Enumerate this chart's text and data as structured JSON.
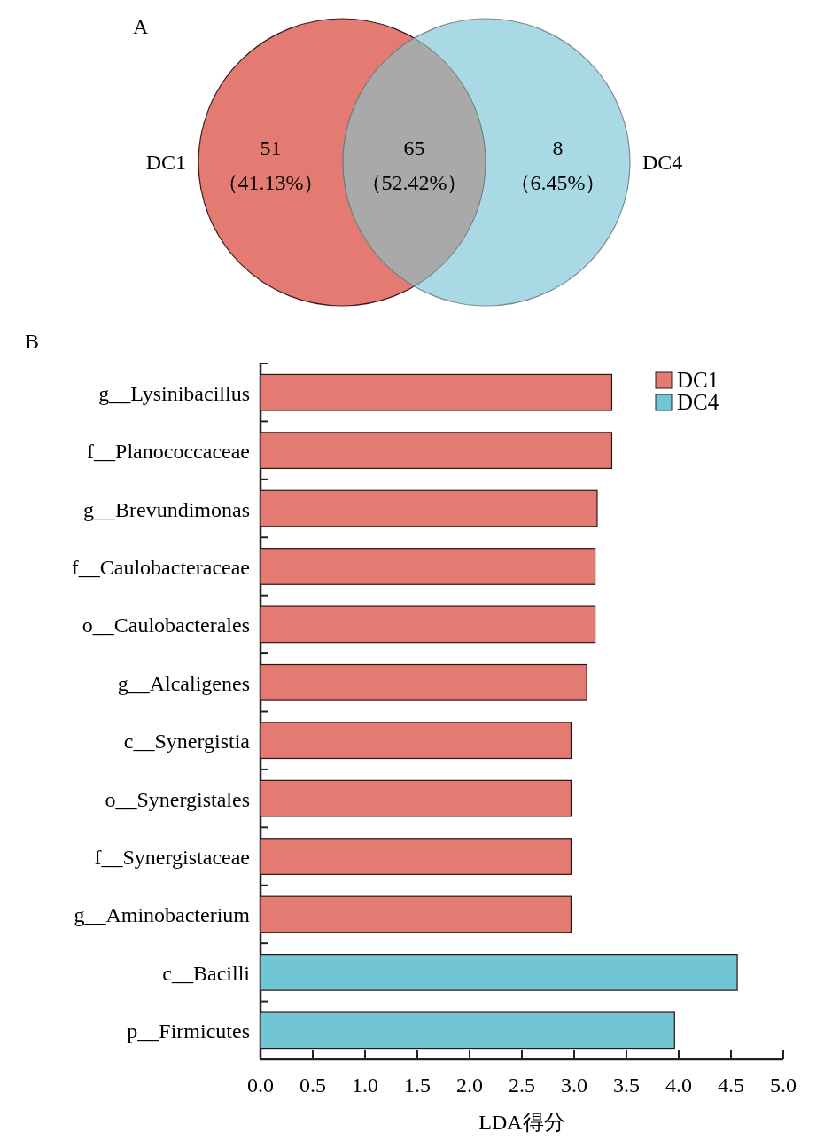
{
  "chart_data": [
    {
      "type": "other",
      "title": "A",
      "categories": [
        null,
        null,
        null
      ],
      "values": [
        51,
        65,
        8
      ],
      "data_labels": true,
      "colors": [
        "#e47b73",
        "#a9a9a9",
        "#a9d9e5"
      ],
      "annotations": [
        "DC1",
        "（41.13%）",
        "（52.42%）",
        "（6.45%）",
        "DC4"
      ]
    },
    {
      "type": "bar",
      "title": "B",
      "orientation": "horizontal",
      "xlabel": "LDA得分",
      "categories": [
        "g__Lysinibacillus",
        "f__Planococcaceae",
        "g__Brevundimonas",
        "f__Caulobacteraceae",
        "o__Caulobacterales",
        "g__Alcaligenes",
        "c__Synergistia",
        "o__Synergistales",
        "f__Synergistaceae",
        "g__Aminobacterium",
        "c__Bacilli",
        "p__Firmicutes"
      ],
      "series": [
        {
          "name": "DC1",
          "color": "#e47b73",
          "values": [
            3.36,
            3.36,
            3.22,
            3.2,
            3.2,
            3.12,
            2.97,
            2.97,
            2.97,
            2.97,
            null,
            null
          ]
        },
        {
          "name": "DC4",
          "color": "#72c5d3",
          "values": [
            null,
            null,
            null,
            null,
            null,
            null,
            null,
            null,
            null,
            null,
            4.56,
            3.96
          ]
        }
      ],
      "xlim": [
        0,
        5
      ],
      "xticks": [
        {
          "value": 0,
          "label": "0.0"
        },
        {
          "value": 0.5,
          "label": "0.5"
        },
        {
          "value": 1,
          "label": "1.0"
        },
        {
          "value": 1.5,
          "label": "1.5"
        },
        {
          "value": 2,
          "label": "2.0"
        },
        {
          "value": 2.5,
          "label": "2.5"
        },
        {
          "value": 3,
          "label": "3.0"
        },
        {
          "value": 3.5,
          "label": "3.5"
        },
        {
          "value": 4,
          "label": "4.0"
        },
        {
          "value": 4.5,
          "label": "4.5"
        },
        {
          "value": 5,
          "label": "5.0"
        }
      ],
      "grid": false,
      "legend": "top right"
    }
  ]
}
